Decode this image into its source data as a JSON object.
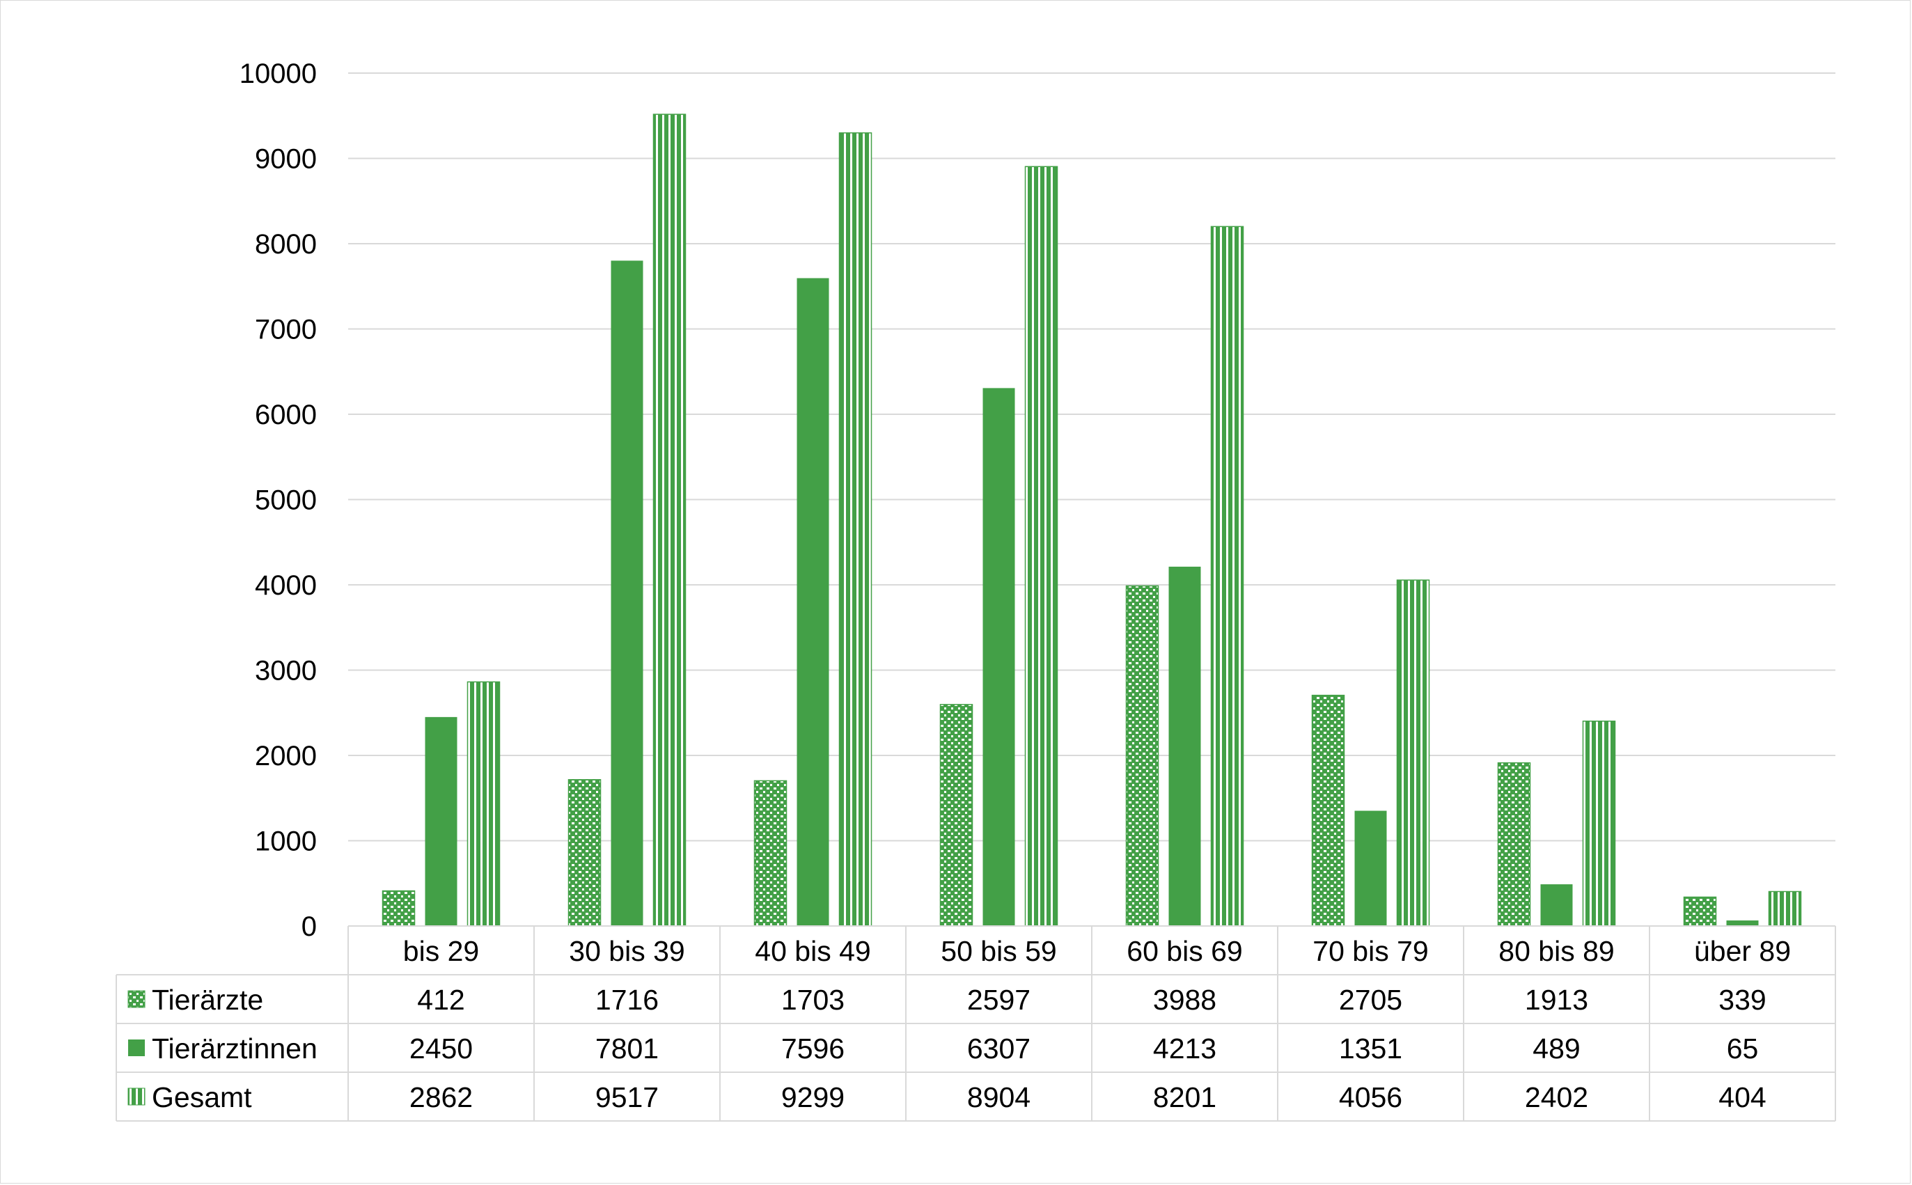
{
  "colors": {
    "series": [
      "#43A047",
      "#43A047",
      "#43A047"
    ],
    "grid": "#d9d9d9",
    "table_border": "#d9d9d9"
  },
  "chart_data": {
    "type": "bar",
    "categories": [
      "bis 29",
      "30 bis 39",
      "40 bis 49",
      "50 bis 59",
      "60 bis 69",
      "70 bis 79",
      "80 bis 89",
      "über 89"
    ],
    "series": [
      {
        "name": "Tierärzte",
        "pattern": "checker",
        "values": [
          412,
          1716,
          1703,
          2597,
          3988,
          2705,
          1913,
          339
        ]
      },
      {
        "name": "Tierärztinnen",
        "pattern": "solid",
        "values": [
          2450,
          7801,
          7596,
          6307,
          4213,
          1351,
          489,
          65
        ]
      },
      {
        "name": "Gesamt",
        "pattern": "vertical-stripes",
        "values": [
          2862,
          9517,
          9299,
          8904,
          8201,
          4056,
          2402,
          404
        ]
      }
    ],
    "ylim": [
      0,
      10000
    ],
    "yticks": [
      0,
      1000,
      2000,
      3000,
      4000,
      5000,
      6000,
      7000,
      8000,
      9000,
      10000
    ],
    "grid": true,
    "legend": "data-table"
  }
}
